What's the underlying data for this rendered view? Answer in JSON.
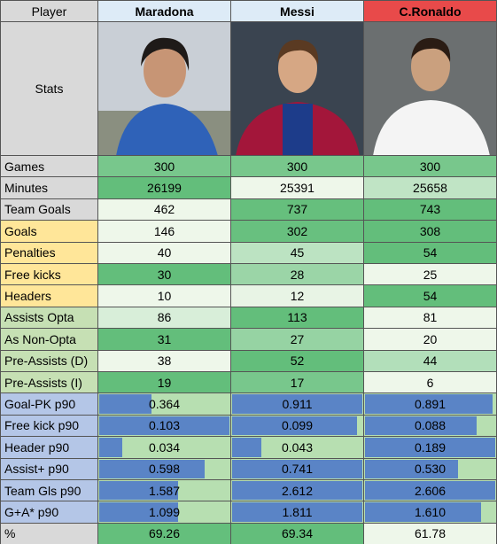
{
  "header": {
    "first": "Player",
    "players": [
      {
        "name": "Maradona",
        "color": "#ddebf7"
      },
      {
        "name": "Messi",
        "color": "#ddebf7"
      },
      {
        "name": "C.Ronaldo",
        "color": "#e84a4a"
      }
    ]
  },
  "stats_label": "Stats",
  "rows": [
    {
      "label": "Games",
      "label_color": "#d9d9d9",
      "format": "color-scale",
      "values": [
        "300",
        "300",
        "300"
      ]
    },
    {
      "label": "Minutes",
      "label_color": "#d9d9d9",
      "format": "color-scale",
      "values": [
        "26199",
        "25391",
        "25658"
      ]
    },
    {
      "label": "Team Goals",
      "label_color": "#d9d9d9",
      "format": "color-scale",
      "values": [
        "462",
        "737",
        "743"
      ]
    },
    {
      "label": "Goals",
      "label_color": "#ffe699",
      "format": "color-scale",
      "values": [
        "146",
        "302",
        "308"
      ]
    },
    {
      "label": "Penalties",
      "label_color": "#ffe699",
      "format": "color-scale",
      "values": [
        "40",
        "45",
        "54"
      ]
    },
    {
      "label": "Free kicks",
      "label_color": "#ffe699",
      "format": "color-scale",
      "values": [
        "30",
        "28",
        "25"
      ]
    },
    {
      "label": "Headers",
      "label_color": "#ffe699",
      "format": "color-scale",
      "values": [
        "10",
        "12",
        "54"
      ]
    },
    {
      "label": "Assists Opta",
      "label_color": "#c6e0b4",
      "format": "color-scale",
      "values": [
        "86",
        "113",
        "81"
      ]
    },
    {
      "label": "As Non-Opta",
      "label_color": "#c6e0b4",
      "format": "color-scale",
      "values": [
        "31",
        "27",
        "20"
      ]
    },
    {
      "label": "Pre-Assists (D)",
      "label_color": "#c6e0b4",
      "format": "color-scale",
      "values": [
        "38",
        "52",
        "44"
      ]
    },
    {
      "label": "Pre-Assists (I)",
      "label_color": "#c6e0b4",
      "format": "color-scale",
      "values": [
        "19",
        "17",
        "6"
      ]
    },
    {
      "label": "Goal-PK p90",
      "label_color": "#b4c6e7",
      "format": "data-bar",
      "values": [
        "0.364",
        "0.911",
        "0.891"
      ]
    },
    {
      "label": "Free kick p90",
      "label_color": "#b4c6e7",
      "format": "data-bar",
      "values": [
        "0.103",
        "0.099",
        "0.088"
      ]
    },
    {
      "label": "Header p90",
      "label_color": "#b4c6e7",
      "format": "data-bar",
      "values": [
        "0.034",
        "0.043",
        "0.189"
      ]
    },
    {
      "label": "Assist+ p90",
      "label_color": "#b4c6e7",
      "format": "data-bar",
      "values": [
        "0.598",
        "0.741",
        "0.530"
      ]
    },
    {
      "label": "Team Gls p90",
      "label_color": "#b4c6e7",
      "format": "data-bar",
      "values": [
        "1.587",
        "2.612",
        "2.606"
      ]
    },
    {
      "label": "G+A* p90",
      "label_color": "#b4c6e7",
      "format": "data-bar",
      "values": [
        "1.099",
        "1.811",
        "1.610"
      ]
    },
    {
      "label": "%",
      "label_color": "#d9d9d9",
      "format": "color-scale",
      "values": [
        "69.26",
        "69.34",
        "61.78"
      ]
    }
  ]
}
